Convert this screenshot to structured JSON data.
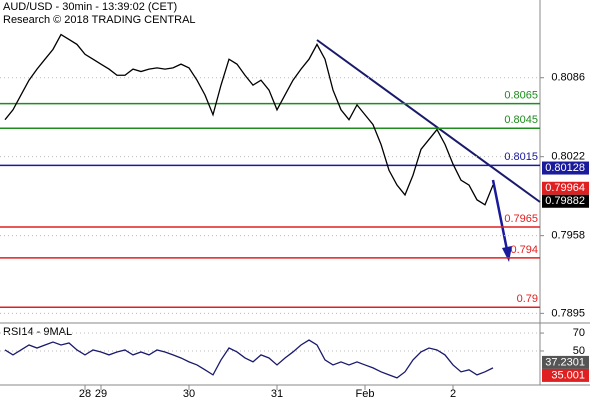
{
  "chart_data": [
    {
      "type": "line",
      "title": "AUD/USD - 30min - 13:39:02 (CET)",
      "subtitle": "Research © 2018 TRADING CENTRAL",
      "categories": [
        null,
        null,
        null,
        null,
        null,
        null,
        null,
        null,
        null,
        null,
        "28",
        null,
        "29",
        null,
        null,
        null,
        null,
        null,
        null,
        null,
        null,
        null,
        null,
        "30",
        null,
        null,
        null,
        null,
        null,
        null,
        null,
        null,
        null,
        null,
        "31",
        null,
        null,
        null,
        null,
        null,
        null,
        null,
        null,
        null,
        null,
        "Feb",
        null,
        null,
        null,
        null,
        null,
        null,
        null,
        null,
        null,
        null,
        "2",
        null,
        null,
        null,
        null,
        null
      ],
      "series": [
        {
          "color": "#000000",
          "values": [
            0.8052,
            0.806,
            0.8072,
            0.8084,
            0.8093,
            0.8101,
            0.8109,
            0.8121,
            0.8117,
            0.8113,
            0.8105,
            0.8101,
            0.8097,
            0.8093,
            0.8088,
            0.8088,
            0.8093,
            0.8091,
            0.8093,
            0.8094,
            0.8093,
            0.8094,
            0.8097,
            0.8094,
            0.8084,
            0.8072,
            0.8056,
            0.808,
            0.8101,
            0.8097,
            0.8088,
            0.808,
            0.8084,
            0.8076,
            0.806,
            0.8072,
            0.8084,
            0.8093,
            0.8101,
            0.8113,
            0.8101,
            0.8076,
            0.806,
            0.8052,
            0.8064,
            0.8056,
            0.8048,
            0.8032,
            0.8011,
            0.7999,
            0.7991,
            0.8007,
            0.8028,
            0.8036,
            0.8044,
            0.8032,
            0.8016,
            0.8003,
            0.7999,
            0.7987,
            0.7983,
            0.7999
          ]
        }
      ],
      "levels": [
        {
          "value": 0.8065,
          "color": "#1e8c1e"
        },
        {
          "value": 0.8045,
          "color": "#1e8c1e"
        },
        {
          "value": 0.8015,
          "color": "#1a1a9c"
        },
        {
          "value": 0.7965,
          "color": "#e02020"
        },
        {
          "value": 0.794,
          "color": "#e02020"
        },
        {
          "value": 0.79,
          "color": "#e02020"
        }
      ],
      "markers": [
        {
          "value": 0.80128,
          "color": "#1a1a9c"
        },
        {
          "value": 0.79964,
          "color": "#e02020"
        },
        {
          "value": 0.79882,
          "color": "#000000"
        }
      ],
      "ylim": [
        0.7888,
        0.8149
      ],
      "yticks": [
        0.8086,
        0.8022,
        0.7958,
        0.7895
      ]
    },
    {
      "type": "line",
      "title": "RSI14 - 9MAL",
      "series": [
        {
          "color": "#1a1a6c",
          "values": [
            51.1,
            45.6,
            51.1,
            56.7,
            53.3,
            56.7,
            60,
            56.7,
            58.9,
            51.1,
            45.6,
            51.1,
            48.9,
            45.6,
            48.9,
            51.1,
            45.6,
            48.9,
            45.6,
            51.1,
            48.9,
            45.6,
            42.2,
            37.8,
            34.4,
            28.9,
            23.3,
            40,
            53.3,
            48.9,
            42.2,
            37.8,
            45.6,
            42.2,
            34.4,
            42.2,
            48.9,
            56.7,
            62.2,
            56.7,
            40,
            34.4,
            37.8,
            34.4,
            37.8,
            34.4,
            31.1,
            26.7,
            23.3,
            20,
            26.7,
            40,
            48.9,
            53.3,
            51.1,
            45.6,
            34.4,
            26.7,
            28.9,
            23.3,
            26.7,
            31.1
          ]
        }
      ],
      "markers": [
        {
          "value": 37.2301,
          "color": "#555555"
        },
        {
          "value": 35.001,
          "color": "#e02020"
        }
      ],
      "ylim": [
        12,
        79
      ],
      "yticks": [
        70,
        50
      ]
    }
  ]
}
